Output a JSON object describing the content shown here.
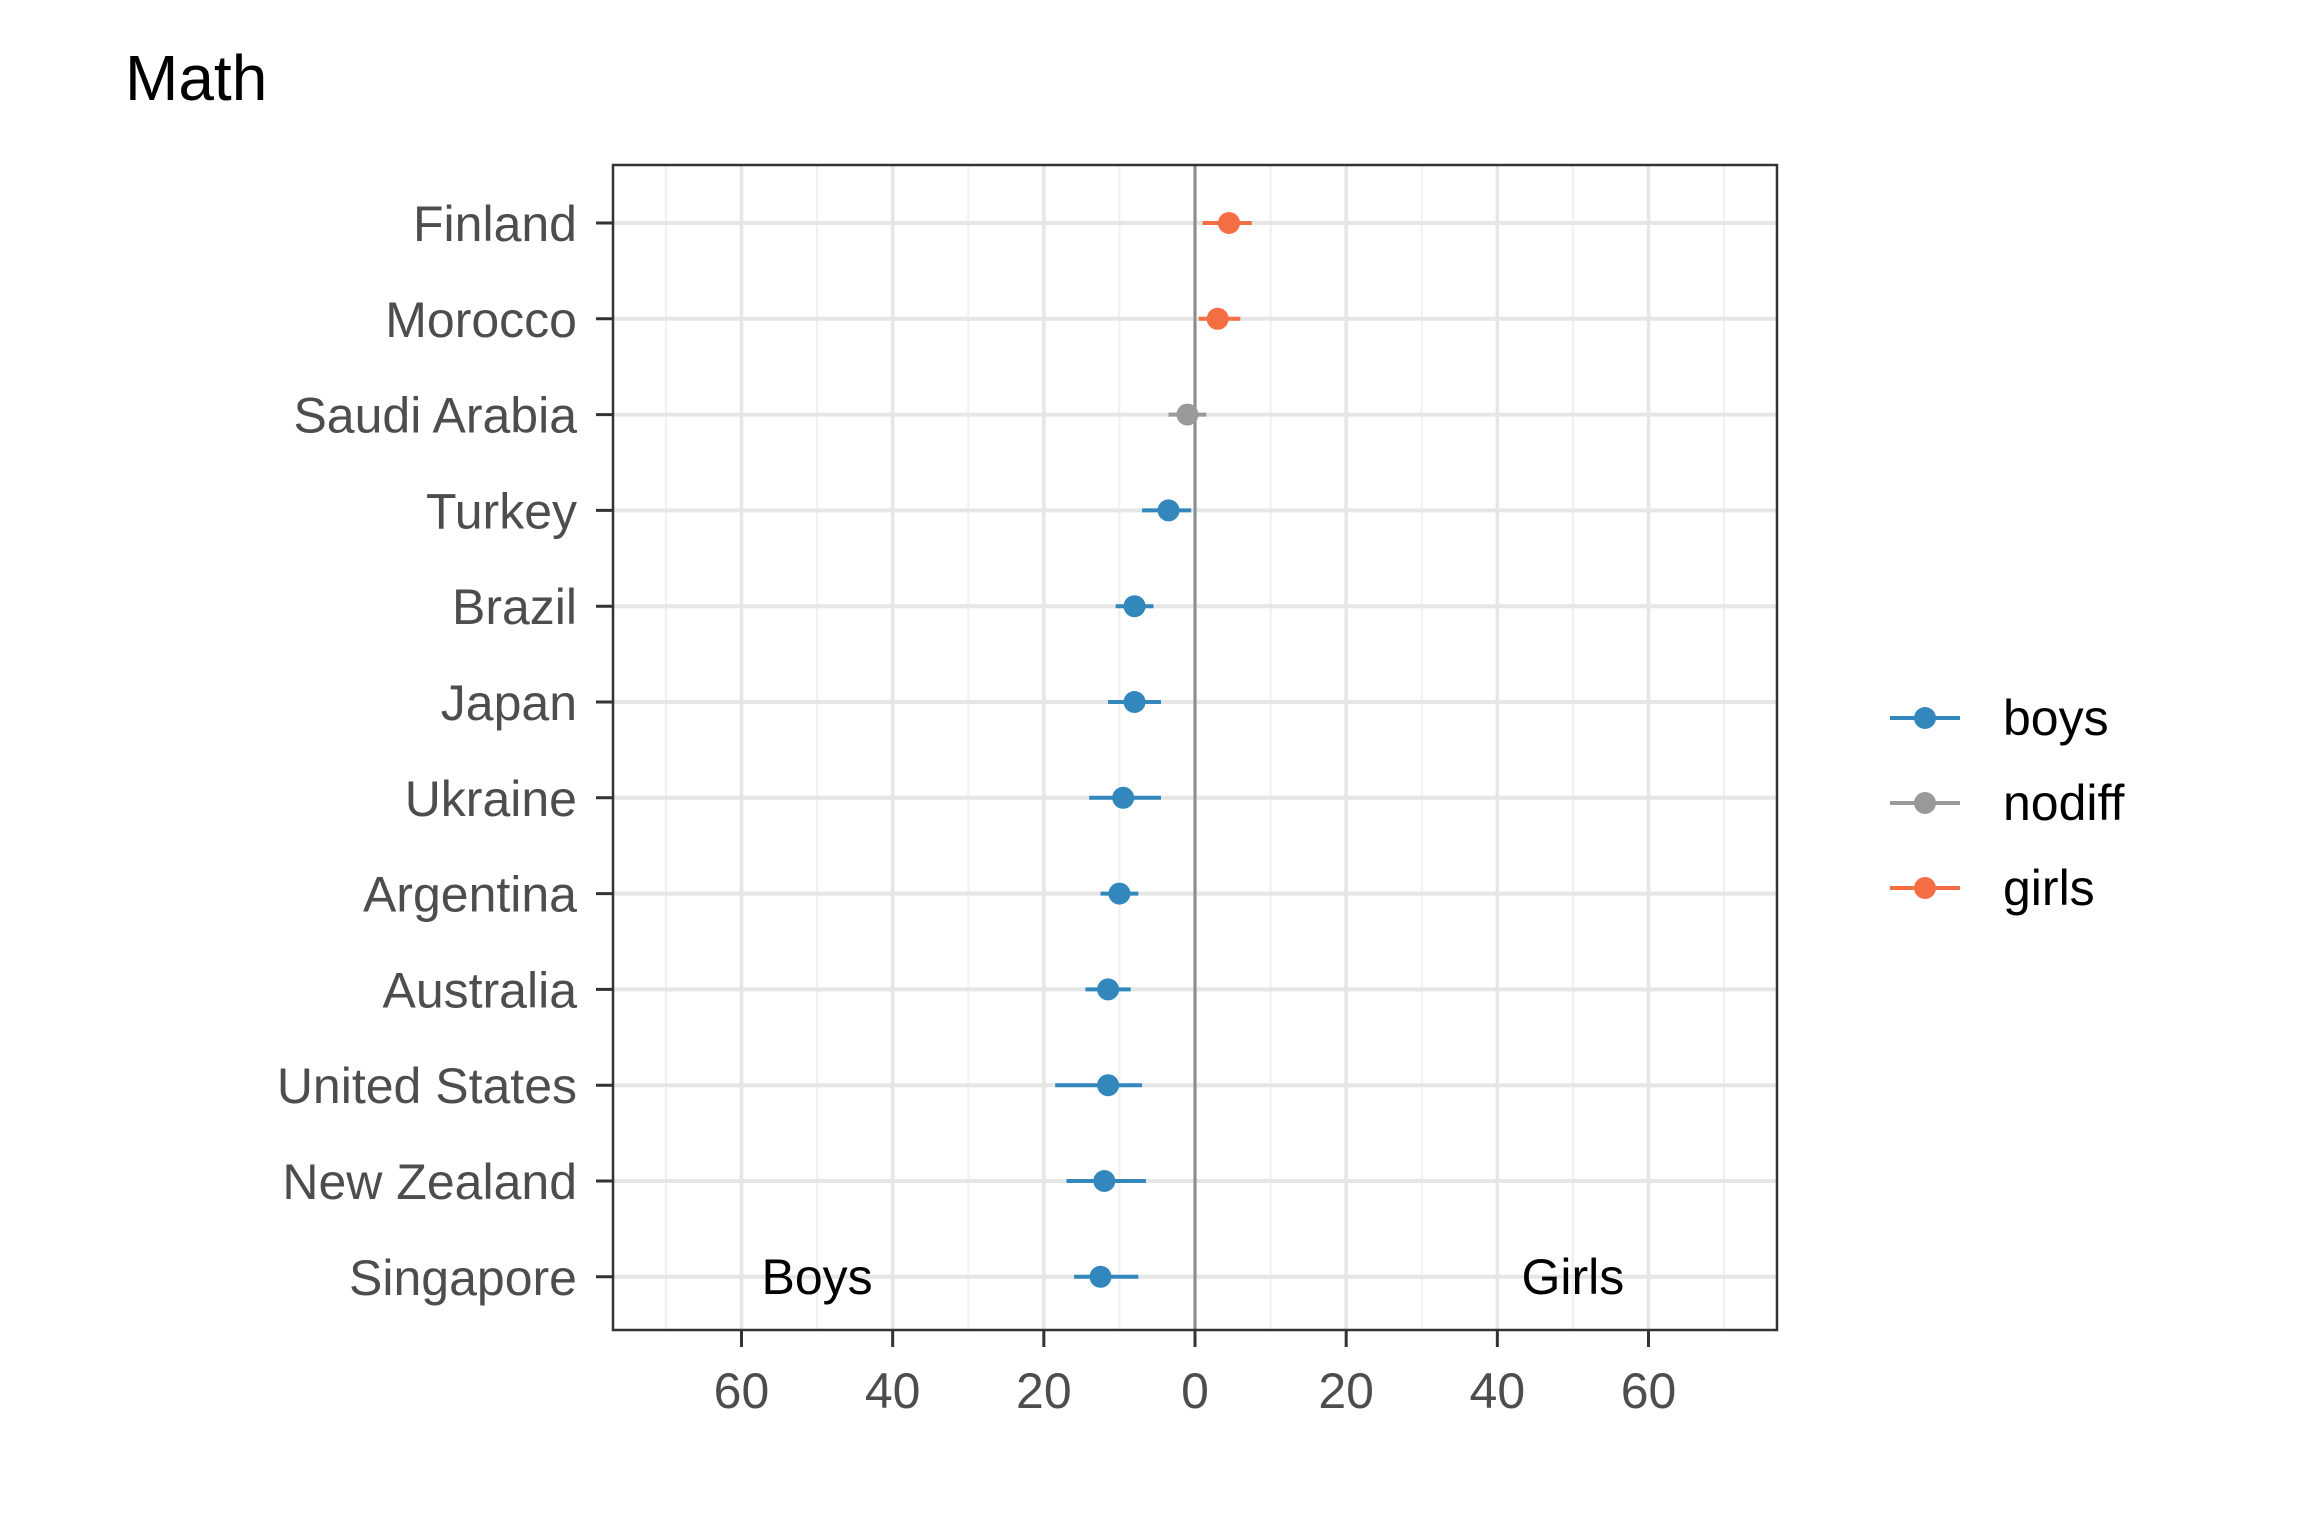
{
  "chart_data": {
    "type": "scatter",
    "title": "Math",
    "xlabel": "",
    "ylabel": "",
    "xlim": [
      -77,
      77
    ],
    "x_ticks": [
      -60,
      -40,
      -20,
      0,
      20,
      40,
      60
    ],
    "x_tick_labels": [
      "60",
      "40",
      "20",
      "0",
      "20",
      "40",
      "60"
    ],
    "x_minor_ticks": [
      -70,
      -50,
      -30,
      -10,
      10,
      30,
      50,
      70
    ],
    "grid": true,
    "legend_position": "right",
    "reference_line_x": 0,
    "annotations": [
      {
        "text": "Boys",
        "x": -50,
        "y": "Singapore"
      },
      {
        "text": "Girls",
        "x": 50,
        "y": "Singapore"
      }
    ],
    "categories": [
      "Finland",
      "Morocco",
      "Saudi Arabia",
      "Turkey",
      "Brazil",
      "Japan",
      "Ukraine",
      "Argentina",
      "Australia",
      "United States",
      "New Zealand",
      "Singapore"
    ],
    "series": [
      {
        "name": "boys",
        "color": "#3288BD"
      },
      {
        "name": "nodiff",
        "color": "#999999"
      },
      {
        "name": "girls",
        "color": "#F46D43"
      }
    ],
    "points": [
      {
        "country": "Finland",
        "group": "girls",
        "value": 4.5,
        "low": 1,
        "high": 7.5
      },
      {
        "country": "Morocco",
        "group": "girls",
        "value": 3,
        "low": 0.5,
        "high": 6
      },
      {
        "country": "Saudi Arabia",
        "group": "nodiff",
        "value": -1,
        "low": -3.5,
        "high": 1.5
      },
      {
        "country": "Turkey",
        "group": "boys",
        "value": -3.5,
        "low": -7,
        "high": -0.5
      },
      {
        "country": "Brazil",
        "group": "boys",
        "value": -8,
        "low": -10.5,
        "high": -5.5
      },
      {
        "country": "Japan",
        "group": "boys",
        "value": -8,
        "low": -11.5,
        "high": -4.5
      },
      {
        "country": "Ukraine",
        "group": "boys",
        "value": -9.5,
        "low": -14,
        "high": -4.5
      },
      {
        "country": "Argentina",
        "group": "boys",
        "value": -10,
        "low": -12.5,
        "high": -7.5
      },
      {
        "country": "Australia",
        "group": "boys",
        "value": -11.5,
        "low": -14.5,
        "high": -8.5
      },
      {
        "country": "United States",
        "group": "boys",
        "value": -11.5,
        "low": -18.5,
        "high": -7
      },
      {
        "country": "New Zealand",
        "group": "boys",
        "value": -12,
        "low": -17,
        "high": -6.5
      },
      {
        "country": "Singapore",
        "group": "boys",
        "value": -12.5,
        "low": -16,
        "high": -7.5
      }
    ]
  }
}
